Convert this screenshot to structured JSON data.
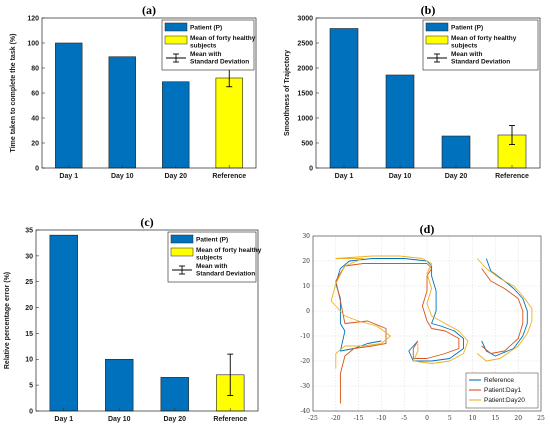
{
  "chart_data": [
    {
      "id": "a",
      "type": "bar",
      "title": "(a)",
      "ylabel": "Time taken to complete the task (%)",
      "categories": [
        "Day 1",
        "Day 10",
        "Day 20",
        "Reference"
      ],
      "values": [
        100,
        89,
        69,
        72
      ],
      "error": [
        null,
        null,
        null,
        7
      ],
      "ylim": [
        0,
        120
      ],
      "yticks": [
        0,
        20,
        40,
        60,
        80,
        100,
        120
      ],
      "bar_colors": [
        "#0072BD",
        "#0072BD",
        "#0072BD",
        "#FFFF00"
      ],
      "legend": [
        "Patient (P)",
        "Mean of forty healthy subjects",
        "Mean with Standard Deviation"
      ],
      "legend_position": "top-right"
    },
    {
      "id": "b",
      "type": "bar",
      "title": "(b)",
      "ylabel": "Smoothness of Trajectory",
      "categories": [
        "Day 1",
        "Day 10",
        "Day 20",
        "Reference"
      ],
      "values": [
        2790,
        1860,
        640,
        660
      ],
      "error": [
        null,
        null,
        null,
        190
      ],
      "ylim": [
        0,
        3000
      ],
      "yticks": [
        0,
        500,
        1000,
        1500,
        2000,
        2500,
        3000
      ],
      "bar_colors": [
        "#0072BD",
        "#0072BD",
        "#0072BD",
        "#FFFF00"
      ],
      "legend": [
        "Patient (P)",
        "Mean of forty healthy subjects",
        "Mean with Standard Deviation"
      ],
      "legend_position": "top-right"
    },
    {
      "id": "c",
      "type": "bar",
      "title": "(c)",
      "ylabel": "Relative percentage error (%)",
      "categories": [
        "Day 1",
        "Day 10",
        "Day 20",
        "Reference"
      ],
      "values": [
        34,
        10,
        6.5,
        7
      ],
      "error": [
        null,
        null,
        null,
        4
      ],
      "ylim": [
        0,
        35
      ],
      "yticks": [
        0,
        5,
        10,
        15,
        20,
        25,
        30,
        35
      ],
      "bar_colors": [
        "#0072BD",
        "#0072BD",
        "#0072BD",
        "#FFFF00"
      ],
      "legend": [
        "Patient (P)",
        "Mean of forty healthy subjects",
        "Mean with Standard Deviation"
      ],
      "legend_position": "top-right"
    },
    {
      "id": "d",
      "type": "line",
      "title": "(d)",
      "xlim": [
        -25,
        25
      ],
      "ylim": [
        -40,
        30
      ],
      "xticks": [
        -25,
        -20,
        -15,
        -10,
        -5,
        0,
        5,
        10,
        15,
        20,
        25
      ],
      "yticks": [
        -40,
        -30,
        -20,
        -10,
        0,
        10,
        20,
        30
      ],
      "legend_position": "bottom-right",
      "series": [
        {
          "name": "Reference",
          "color": "#0072BD",
          "strokes": [
            [
              [
                -10,
                -12
              ],
              [
                -13,
                -13
              ],
              [
                -16,
                -15
              ],
              [
                -19,
                -16
              ],
              [
                -18,
                -8
              ],
              [
                -19,
                -5
              ],
              [
                -19,
                5
              ],
              [
                -20,
                11
              ],
              [
                -19,
                17
              ],
              [
                -17,
                20
              ],
              [
                -12,
                21
              ],
              [
                -5,
                21
              ],
              [
                0,
                20
              ],
              [
                1,
                18
              ],
              [
                1,
                14
              ],
              [
                2,
                8
              ],
              [
                2,
                0
              ],
              [
                1,
                -5
              ],
              [
                3,
                -6
              ],
              [
                6,
                -8
              ],
              [
                8,
                -11
              ],
              [
                8,
                -15
              ],
              [
                5,
                -19
              ],
              [
                1,
                -20
              ],
              [
                -3,
                -20
              ],
              [
                -4,
                -16
              ],
              [
                -2,
                -12
              ]
            ],
            [
              [
                13,
                21
              ],
              [
                14,
                16
              ],
              [
                17,
                12
              ],
              [
                19,
                9
              ],
              [
                21,
                5
              ],
              [
                22,
                0
              ],
              [
                22,
                -5
              ],
              [
                21,
                -10
              ],
              [
                19,
                -15
              ],
              [
                15,
                -18
              ],
              [
                13,
                -16
              ],
              [
                12,
                -12
              ]
            ]
          ]
        },
        {
          "name": "Patient:Day1",
          "color": "#D95319",
          "strokes": [
            [
              [
                -19,
                -37
              ],
              [
                -19,
                -25
              ],
              [
                -18,
                -18
              ],
              [
                -16,
                -15
              ],
              [
                -12,
                -14
              ],
              [
                -9,
                -13
              ],
              [
                -9,
                -7
              ],
              [
                -13,
                -4
              ],
              [
                -18,
                -5
              ],
              [
                -19,
                4
              ],
              [
                -20,
                12
              ],
              [
                -18,
                18
              ],
              [
                -14,
                19
              ],
              [
                -8,
                19
              ],
              [
                -3,
                19
              ],
              [
                0,
                19
              ],
              [
                1,
                17
              ],
              [
                0,
                14
              ],
              [
                0,
                8
              ],
              [
                -1,
                2
              ],
              [
                0,
                -4
              ],
              [
                1,
                -7
              ],
              [
                4,
                -8
              ],
              [
                7,
                -11
              ],
              [
                7,
                -15
              ],
              [
                4,
                -17
              ],
              [
                0,
                -19
              ],
              [
                -3,
                -19
              ],
              [
                -3,
                -15
              ],
              [
                -2,
                -12
              ]
            ],
            [
              [
                12,
                17
              ],
              [
                14,
                12
              ],
              [
                17,
                9
              ],
              [
                20,
                5
              ],
              [
                21,
                0
              ],
              [
                21,
                -5
              ],
              [
                20,
                -11
              ],
              [
                17,
                -16
              ],
              [
                14,
                -17
              ],
              [
                12,
                -14
              ]
            ]
          ]
        },
        {
          "name": "Patient:Day20",
          "color": "#EDB120",
          "strokes": [
            [
              [
                -20,
                -23
              ],
              [
                -20,
                -17
              ],
              [
                -18,
                -14
              ],
              [
                -14,
                -14
              ],
              [
                -10,
                -13
              ],
              [
                -8,
                -10
              ],
              [
                -11,
                -6
              ],
              [
                -15,
                -4
              ],
              [
                -18,
                -2
              ],
              [
                -21,
                4
              ],
              [
                -20,
                11
              ],
              [
                -18,
                18
              ],
              [
                -14,
                21
              ],
              [
                -20,
                21
              ],
              [
                -12,
                22
              ],
              [
                -6,
                22
              ],
              [
                -1,
                21
              ],
              [
                1,
                19
              ],
              [
                0,
                15
              ],
              [
                1,
                9
              ],
              [
                0,
                3
              ],
              [
                1,
                -2
              ],
              [
                4,
                -5
              ],
              [
                7,
                -8
              ],
              [
                9,
                -12
              ],
              [
                8,
                -17
              ],
              [
                5,
                -20
              ],
              [
                1,
                -21
              ],
              [
                -3,
                -20
              ],
              [
                -2,
                -16
              ],
              [
                -2,
                -13
              ]
            ],
            [
              [
                11,
                21
              ],
              [
                13,
                17
              ],
              [
                16,
                13
              ],
              [
                19,
                10
              ],
              [
                21,
                6
              ],
              [
                23,
                1
              ],
              [
                23,
                -4
              ],
              [
                22,
                -9
              ],
              [
                20,
                -14
              ],
              [
                16,
                -19
              ],
              [
                13,
                -20
              ],
              [
                11,
                -17
              ]
            ]
          ]
        }
      ]
    }
  ]
}
